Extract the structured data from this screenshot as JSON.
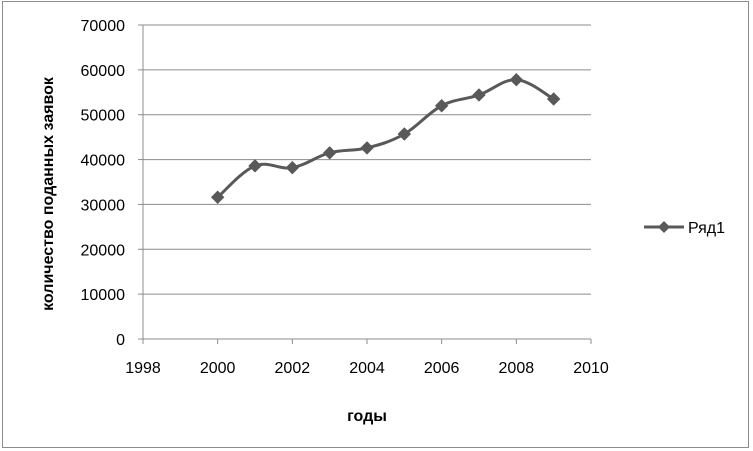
{
  "chart_data": {
    "type": "line",
    "xlabel": "годы",
    "ylabel": "количество поданных заявок",
    "xlim": [
      1998,
      2010
    ],
    "ylim": [
      0,
      70000
    ],
    "x_ticks": [
      "1998",
      "2000",
      "2002",
      "2004",
      "2006",
      "2008",
      "2010"
    ],
    "y_ticks": [
      "0",
      "10000",
      "20000",
      "30000",
      "40000",
      "50000",
      "60000",
      "70000"
    ],
    "grid": "horizontal",
    "legend_position": "right",
    "smooth": true,
    "marker": "diamond",
    "line_color": "#595959",
    "series": [
      {
        "name": "Ряд1",
        "x": [
          2000,
          2001,
          2002,
          2003,
          2004,
          2005,
          2006,
          2007,
          2008,
          2009
        ],
        "values": [
          31600,
          38600,
          38200,
          41500,
          42600,
          45700,
          52000,
          54400,
          57800,
          53500
        ]
      }
    ]
  }
}
